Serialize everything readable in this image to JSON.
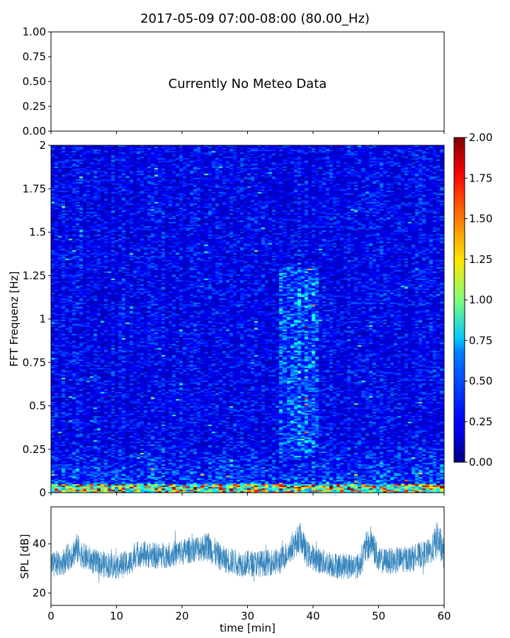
{
  "figure_title": "2017-05-09 07:00-08:00 (80.00_Hz)",
  "chart_data": [
    {
      "type": "line",
      "panel": "meteo",
      "message": "Currently No Meteo Data",
      "ylim": [
        0,
        1
      ],
      "y_ticks": [
        "0.00",
        "0.25",
        "0.50",
        "0.75",
        "1.00"
      ],
      "xlim": [
        0,
        60
      ],
      "x_tick_labels_shown": false
    },
    {
      "type": "heatmap",
      "panel": "spectrogram",
      "ylabel": "FFT Frequenz [Hz]",
      "ylim": [
        0,
        2
      ],
      "y_ticks": [
        "0",
        "0.25",
        "0.5",
        "0.75",
        "1",
        "1.25",
        "1.5",
        "1.75",
        "2"
      ],
      "xlim": [
        0,
        60
      ],
      "x_tick_labels_shown": false,
      "colormap": "jet",
      "color_range": [
        0,
        2
      ],
      "colorbar_ticks": [
        "0.00",
        "0.25",
        "0.50",
        "0.75",
        "1.00",
        "1.25",
        "1.50",
        "1.75",
        "2.00"
      ],
      "typical_level": 0.25,
      "low_frequency_band": {
        "freq_max": 0.05,
        "typical_level": 1.2
      },
      "brighter_regions": [
        {
          "time_min": [
            35,
            41
          ],
          "freq_hz": [
            0.2,
            1.3
          ],
          "level": 0.45
        }
      ]
    },
    {
      "type": "area",
      "panel": "spl",
      "xlabel": "time [min]",
      "ylabel": "SPL [dB]",
      "xlim": [
        0,
        60
      ],
      "ylim": [
        15,
        55
      ],
      "x_ticks": [
        "0",
        "10",
        "20",
        "30",
        "40",
        "50",
        "60"
      ],
      "y_ticks": [
        "20",
        "40"
      ],
      "color": "#1f77b4",
      "envelope": {
        "time_min": [
          0,
          2,
          4,
          5,
          7,
          10,
          12,
          13,
          16,
          19,
          22,
          24,
          26,
          29,
          32,
          35,
          37,
          38,
          39,
          41,
          44,
          47,
          48,
          49,
          50,
          52,
          55,
          58,
          59,
          60
        ],
        "spl_mean": [
          31,
          33,
          38,
          35,
          32,
          31,
          32,
          36,
          35,
          36,
          38,
          39,
          34,
          32,
          32,
          33,
          39,
          43,
          36,
          33,
          31,
          31,
          38,
          41,
          33,
          33,
          34,
          37,
          42,
          36
        ],
        "spl_spread": [
          6,
          6,
          7,
          6,
          6,
          6,
          6,
          6,
          6,
          6,
          6,
          7,
          6,
          6,
          6,
          6,
          6,
          7,
          6,
          6,
          6,
          6,
          7,
          8,
          6,
          6,
          6,
          6,
          9,
          7
        ]
      }
    }
  ],
  "colors": {
    "axes": "#000000",
    "background": "#ffffff"
  }
}
